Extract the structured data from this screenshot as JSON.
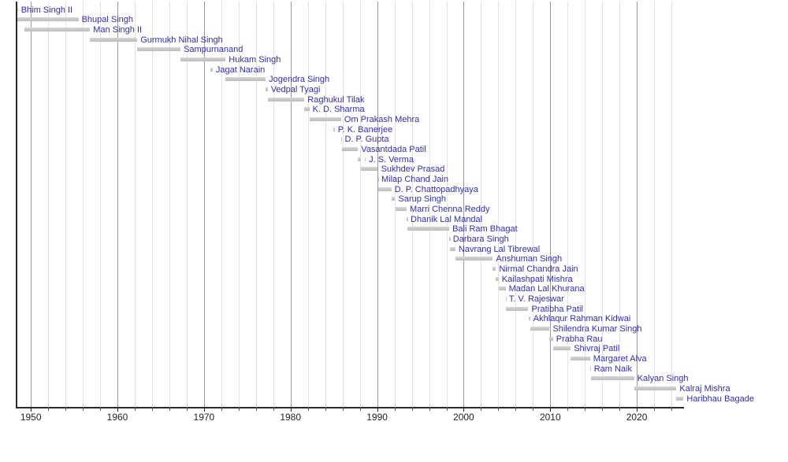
{
  "chart_data": {
    "type": "bar",
    "variant": "gantt-timeline",
    "title": "",
    "xlabel": "",
    "ylabel": "",
    "legend": null,
    "x_axis": {
      "range_years": [
        1948.3,
        2025.4
      ],
      "tick_labels": [
        "1950",
        "1960",
        "1970",
        "1980",
        "1990",
        "2000",
        "2010",
        "2020"
      ],
      "tick_years": [
        1950,
        1960,
        1970,
        1980,
        1990,
        2000,
        2010,
        2020
      ],
      "gridline_step_years": 2,
      "gridline_first_year": 1950,
      "gridline_last_year": 2024,
      "grid": "on"
    },
    "entries": [
      {
        "name": "Bhim Singh II",
        "segments": [
          [
            1948.3,
            1948.5
          ]
        ]
      },
      {
        "name": "Bhupal Singh",
        "segments": [
          [
            1948.3,
            1955.5
          ]
        ]
      },
      {
        "name": "Man Singh II",
        "segments": [
          [
            1949.25,
            1956.84
          ]
        ]
      },
      {
        "name": "Gurmukh Nihal Singh",
        "segments": [
          [
            1956.84,
            1962.29
          ]
        ]
      },
      {
        "name": "Sampurnanand",
        "segments": [
          [
            1962.29,
            1967.29
          ]
        ]
      },
      {
        "name": "Hukam Singh",
        "segments": [
          [
            1967.29,
            1972.5
          ]
        ]
      },
      {
        "name": "Jagat Narain",
        "segments": [
          [
            1970.75,
            1971.0
          ]
        ]
      },
      {
        "name": "Jogendra Singh",
        "segments": [
          [
            1972.5,
            1977.12
          ]
        ]
      },
      {
        "name": "Vedpal Tyagi",
        "segments": [
          [
            1977.12,
            1977.36
          ]
        ]
      },
      {
        "name": "Raghukul Tilak",
        "segments": [
          [
            1977.38,
            1981.6
          ]
        ]
      },
      {
        "name": "K. D. Sharma",
        "segments": [
          [
            1981.6,
            1982.17
          ]
        ]
      },
      {
        "name": "Om Prakash Mehra",
        "segments": [
          [
            1982.18,
            1985.84
          ]
        ]
      },
      {
        "name": "P. K. Banerjee",
        "segments": [
          [
            1984.95,
            1985.1
          ]
        ]
      },
      {
        "name": "D. P. Gupta",
        "segments": [
          [
            1985.84,
            1985.9
          ]
        ]
      },
      {
        "name": "Vasantdada Patil",
        "segments": [
          [
            1985.9,
            1987.79
          ]
        ]
      },
      {
        "name": "J. S. Verma",
        "segments": [
          [
            1987.79,
            1988.14
          ],
          [
            1988.55,
            1988.68
          ]
        ]
      },
      {
        "name": "Sukhdev Prasad",
        "segments": [
          [
            1988.14,
            1990.09
          ]
        ]
      },
      {
        "name": "Milap Chand Jain",
        "segments": [
          [
            1990.09,
            1990.13
          ]
        ]
      },
      {
        "name": "D. P. Chattopadhyaya",
        "segments": [
          [
            1990.13,
            1991.65
          ]
        ]
      },
      {
        "name": "Sarup Singh",
        "segments": [
          [
            1991.65,
            1992.09
          ]
        ]
      },
      {
        "name": "Marri Chenna Reddy",
        "segments": [
          [
            1992.1,
            1993.41
          ]
        ]
      },
      {
        "name": "Dhanik Lal Mandal",
        "segments": [
          [
            1993.41,
            1993.5
          ]
        ]
      },
      {
        "name": "Bali Ram Bhagat",
        "segments": [
          [
            1993.5,
            1998.33
          ]
        ]
      },
      {
        "name": "Darbara Singh",
        "segments": [
          [
            1998.33,
            1998.4
          ]
        ]
      },
      {
        "name": "Navrang Lal Tibrewal",
        "segments": [
          [
            1998.4,
            1999.04
          ]
        ]
      },
      {
        "name": "Anshuman Singh",
        "segments": [
          [
            1999.04,
            2003.37
          ]
        ]
      },
      {
        "name": "Nirmal Chandra Jain",
        "segments": [
          [
            2003.37,
            2003.73
          ]
        ]
      },
      {
        "name": "Kailashpati Mishra",
        "segments": [
          [
            2003.73,
            2004.04
          ]
        ]
      },
      {
        "name": "Madan Lal Khurana",
        "segments": [
          [
            2004.04,
            2004.84
          ]
        ]
      },
      {
        "name": "T. V. Rajeswar",
        "segments": [
          [
            2004.84,
            2004.87
          ]
        ]
      },
      {
        "name": "Pratibha Patil",
        "segments": [
          [
            2004.87,
            2007.47
          ]
        ]
      },
      {
        "name": "Akhlaqur Rahman Kidwai",
        "segments": [
          [
            2007.47,
            2007.68
          ]
        ]
      },
      {
        "name": "Shilendra Kumar Singh",
        "segments": [
          [
            2007.68,
            2009.92
          ]
        ]
      },
      {
        "name": "Prabha Rau",
        "segments": [
          [
            2009.92,
            2010.32
          ]
        ]
      },
      {
        "name": "Shivraj Patil",
        "segments": [
          [
            2010.32,
            2012.36
          ]
        ]
      },
      {
        "name": "Margaret Alva",
        "segments": [
          [
            2012.36,
            2014.6
          ]
        ]
      },
      {
        "name": "Ram Naik",
        "segments": [
          [
            2014.6,
            2014.68
          ]
        ]
      },
      {
        "name": "Kalyan Singh",
        "segments": [
          [
            2014.68,
            2019.69
          ]
        ]
      },
      {
        "name": "Kalraj Mishra",
        "segments": [
          [
            2019.69,
            2024.58
          ]
        ]
      },
      {
        "name": "Haribhau Bagade",
        "segments": [
          [
            2024.58,
            2025.4
          ]
        ]
      }
    ]
  },
  "colors": {
    "background": "#ffffff",
    "bar": "#c7c7c7",
    "label": "#2c2cc8",
    "axis": "#2a2a2a",
    "gridline_minor": "#e2e2e2",
    "gridline_major": "#9a9a9a",
    "tick_label": "#222222"
  }
}
